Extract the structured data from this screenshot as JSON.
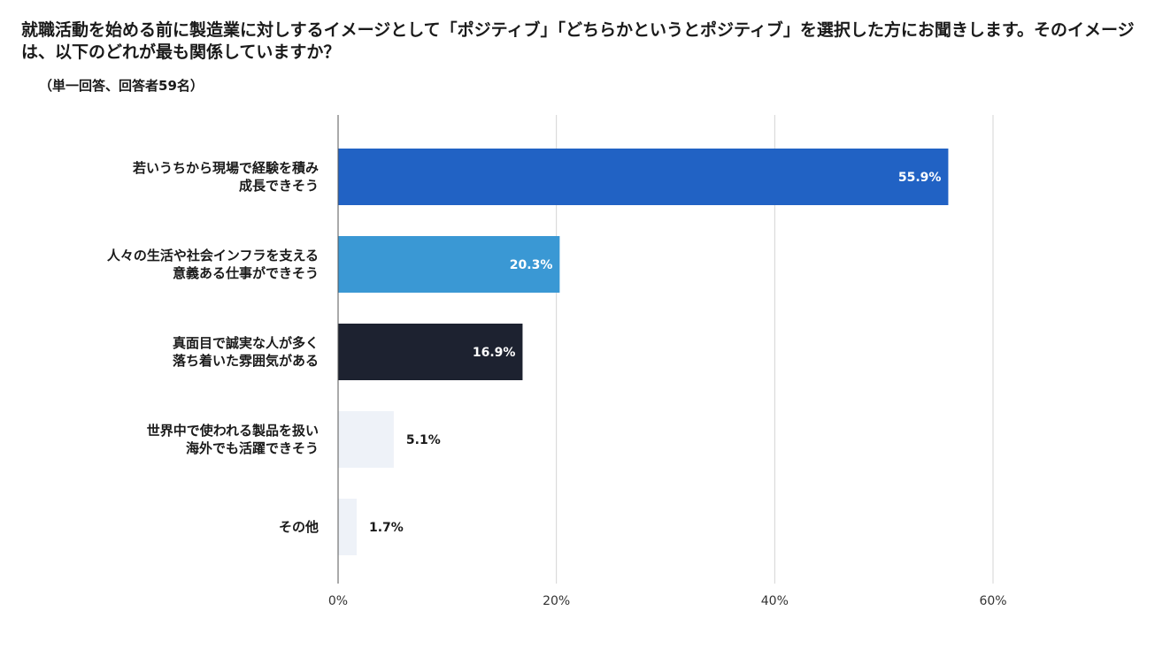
{
  "chart_data": {
    "type": "bar",
    "orientation": "horizontal",
    "title": "就職活動を始める前に製造業に対しするイメージとして「ポジティブ」「どちらかというとポジティブ」を選択した方にお聞きします。そのイメージは、以下のどれが最も関係していますか？",
    "subtitle": "（単一回答、回答者59名）",
    "categories": [
      [
        "若いうちから現場で経験を積み",
        "成長できそう"
      ],
      [
        "人々の生活や社会インフラを支える",
        "意義ある仕事ができそう"
      ],
      [
        "真面目で誠実な人が多く",
        "落ち着いた雰囲気がある"
      ],
      [
        "世界中で使われる製品を扱い",
        "海外でも活躍できそう"
      ],
      [
        "その他"
      ]
    ],
    "values": [
      55.9,
      20.3,
      16.9,
      5.1,
      1.7
    ],
    "value_labels": [
      "55.9%",
      "20.3%",
      "16.9%",
      "5.1%",
      "1.7%"
    ],
    "bar_colors": [
      "#2162c4",
      "#3a98d4",
      "#1d2230",
      "#eef2f8",
      "#eef2f8"
    ],
    "label_colors": [
      "#ffffff",
      "#ffffff",
      "#ffffff",
      "#1a1a1a",
      "#1a1a1a"
    ],
    "xlim": [
      0,
      60
    ],
    "xticks": [
      0,
      20,
      40,
      60
    ],
    "xtick_labels": [
      "0%",
      "20%",
      "40%",
      "60%"
    ],
    "grid": true,
    "xlabel": "",
    "ylabel": ""
  }
}
